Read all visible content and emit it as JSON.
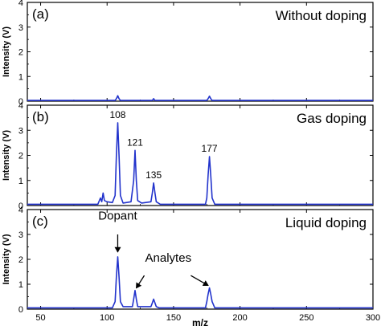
{
  "chart_data": {
    "type": "line",
    "x_axis": {
      "label": "m/z",
      "range": [
        40,
        300
      ],
      "ticks": [
        50,
        100,
        150,
        200,
        250,
        300
      ]
    },
    "y_axis_label": "Intensity (V)",
    "line_color": "#2233cc",
    "panels": [
      {
        "label": "(a)",
        "title": "Without doping",
        "ylim": [
          0,
          4
        ],
        "y_ticks": [
          0,
          1,
          2,
          3,
          4
        ],
        "points": [
          [
            40,
            0.03
          ],
          [
            95,
            0.03
          ],
          [
            106,
            0.03
          ],
          [
            107,
            0.1
          ],
          [
            108,
            0.22
          ],
          [
            109,
            0.1
          ],
          [
            110,
            0.03
          ],
          [
            134,
            0.03
          ],
          [
            135,
            0.1
          ],
          [
            136,
            0.03
          ],
          [
            175,
            0.03
          ],
          [
            176,
            0.1
          ],
          [
            177,
            0.2
          ],
          [
            178,
            0.1
          ],
          [
            179,
            0.03
          ],
          [
            300,
            0.03
          ]
        ],
        "peak_labels": [],
        "annotations": []
      },
      {
        "label": "(b)",
        "title": "Gas doping",
        "ylim": [
          0,
          4
        ],
        "y_ticks": [
          0,
          1,
          2,
          3,
          4
        ],
        "points": [
          [
            40,
            0.05
          ],
          [
            93,
            0.05
          ],
          [
            95,
            0.3
          ],
          [
            96,
            0.15
          ],
          [
            97,
            0.5
          ],
          [
            98,
            0.2
          ],
          [
            100,
            0.15
          ],
          [
            104,
            0.12
          ],
          [
            106,
            0.4
          ],
          [
            107,
            2.0
          ],
          [
            108,
            3.3
          ],
          [
            109,
            2.0
          ],
          [
            110,
            0.4
          ],
          [
            112,
            0.1
          ],
          [
            118,
            0.15
          ],
          [
            120,
            1.0
          ],
          [
            121,
            2.2
          ],
          [
            122,
            1.0
          ],
          [
            123,
            0.2
          ],
          [
            126,
            0.1
          ],
          [
            133,
            0.15
          ],
          [
            134,
            0.5
          ],
          [
            135,
            0.9
          ],
          [
            136,
            0.5
          ],
          [
            137,
            0.15
          ],
          [
            140,
            0.05
          ],
          [
            174,
            0.05
          ],
          [
            175,
            0.3
          ],
          [
            176,
            1.2
          ],
          [
            177,
            1.95
          ],
          [
            178,
            1.2
          ],
          [
            179,
            0.3
          ],
          [
            181,
            0.05
          ],
          [
            300,
            0.05
          ]
        ],
        "peak_labels": [
          {
            "x": 108,
            "y": 3.3,
            "text": "108"
          },
          {
            "x": 121,
            "y": 2.2,
            "text": "121"
          },
          {
            "x": 135,
            "y": 0.9,
            "text": "135"
          },
          {
            "x": 177,
            "y": 1.95,
            "text": "177"
          }
        ],
        "annotations": []
      },
      {
        "label": "(c)",
        "title": "Liquid doping",
        "ylim": [
          0,
          4
        ],
        "y_ticks": [
          0,
          1,
          2,
          3,
          4
        ],
        "points": [
          [
            40,
            0.05
          ],
          [
            104,
            0.05
          ],
          [
            106,
            0.3
          ],
          [
            107,
            1.3
          ],
          [
            108,
            2.1
          ],
          [
            109,
            1.3
          ],
          [
            110,
            0.3
          ],
          [
            112,
            0.1
          ],
          [
            119,
            0.1
          ],
          [
            120,
            0.4
          ],
          [
            121,
            0.75
          ],
          [
            122,
            0.4
          ],
          [
            123,
            0.1
          ],
          [
            133,
            0.1
          ],
          [
            134,
            0.25
          ],
          [
            135,
            0.4
          ],
          [
            136,
            0.25
          ],
          [
            137,
            0.1
          ],
          [
            139,
            0.05
          ],
          [
            174,
            0.05
          ],
          [
            175,
            0.3
          ],
          [
            176,
            0.6
          ],
          [
            177,
            0.85
          ],
          [
            178,
            0.6
          ],
          [
            179,
            0.3
          ],
          [
            181,
            0.05
          ],
          [
            300,
            0.05
          ]
        ],
        "peak_labels": [],
        "annotations": [
          {
            "text": "Dopant",
            "text_x": 108,
            "text_y": 3.6,
            "arrows": [
              {
                "from": [
                  108,
                  3.0
                ],
                "to": [
                  108,
                  2.3
                ]
              }
            ]
          },
          {
            "text": "Analytes",
            "text_x": 146,
            "text_y": 1.9,
            "arrows": [
              {
                "from": [
                  128,
                  1.35
                ],
                "to": [
                  122,
                  0.85
                ]
              },
              {
                "from": [
                  163,
                  1.35
                ],
                "to": [
                  176,
                  0.95
                ]
              }
            ]
          }
        ]
      }
    ]
  }
}
